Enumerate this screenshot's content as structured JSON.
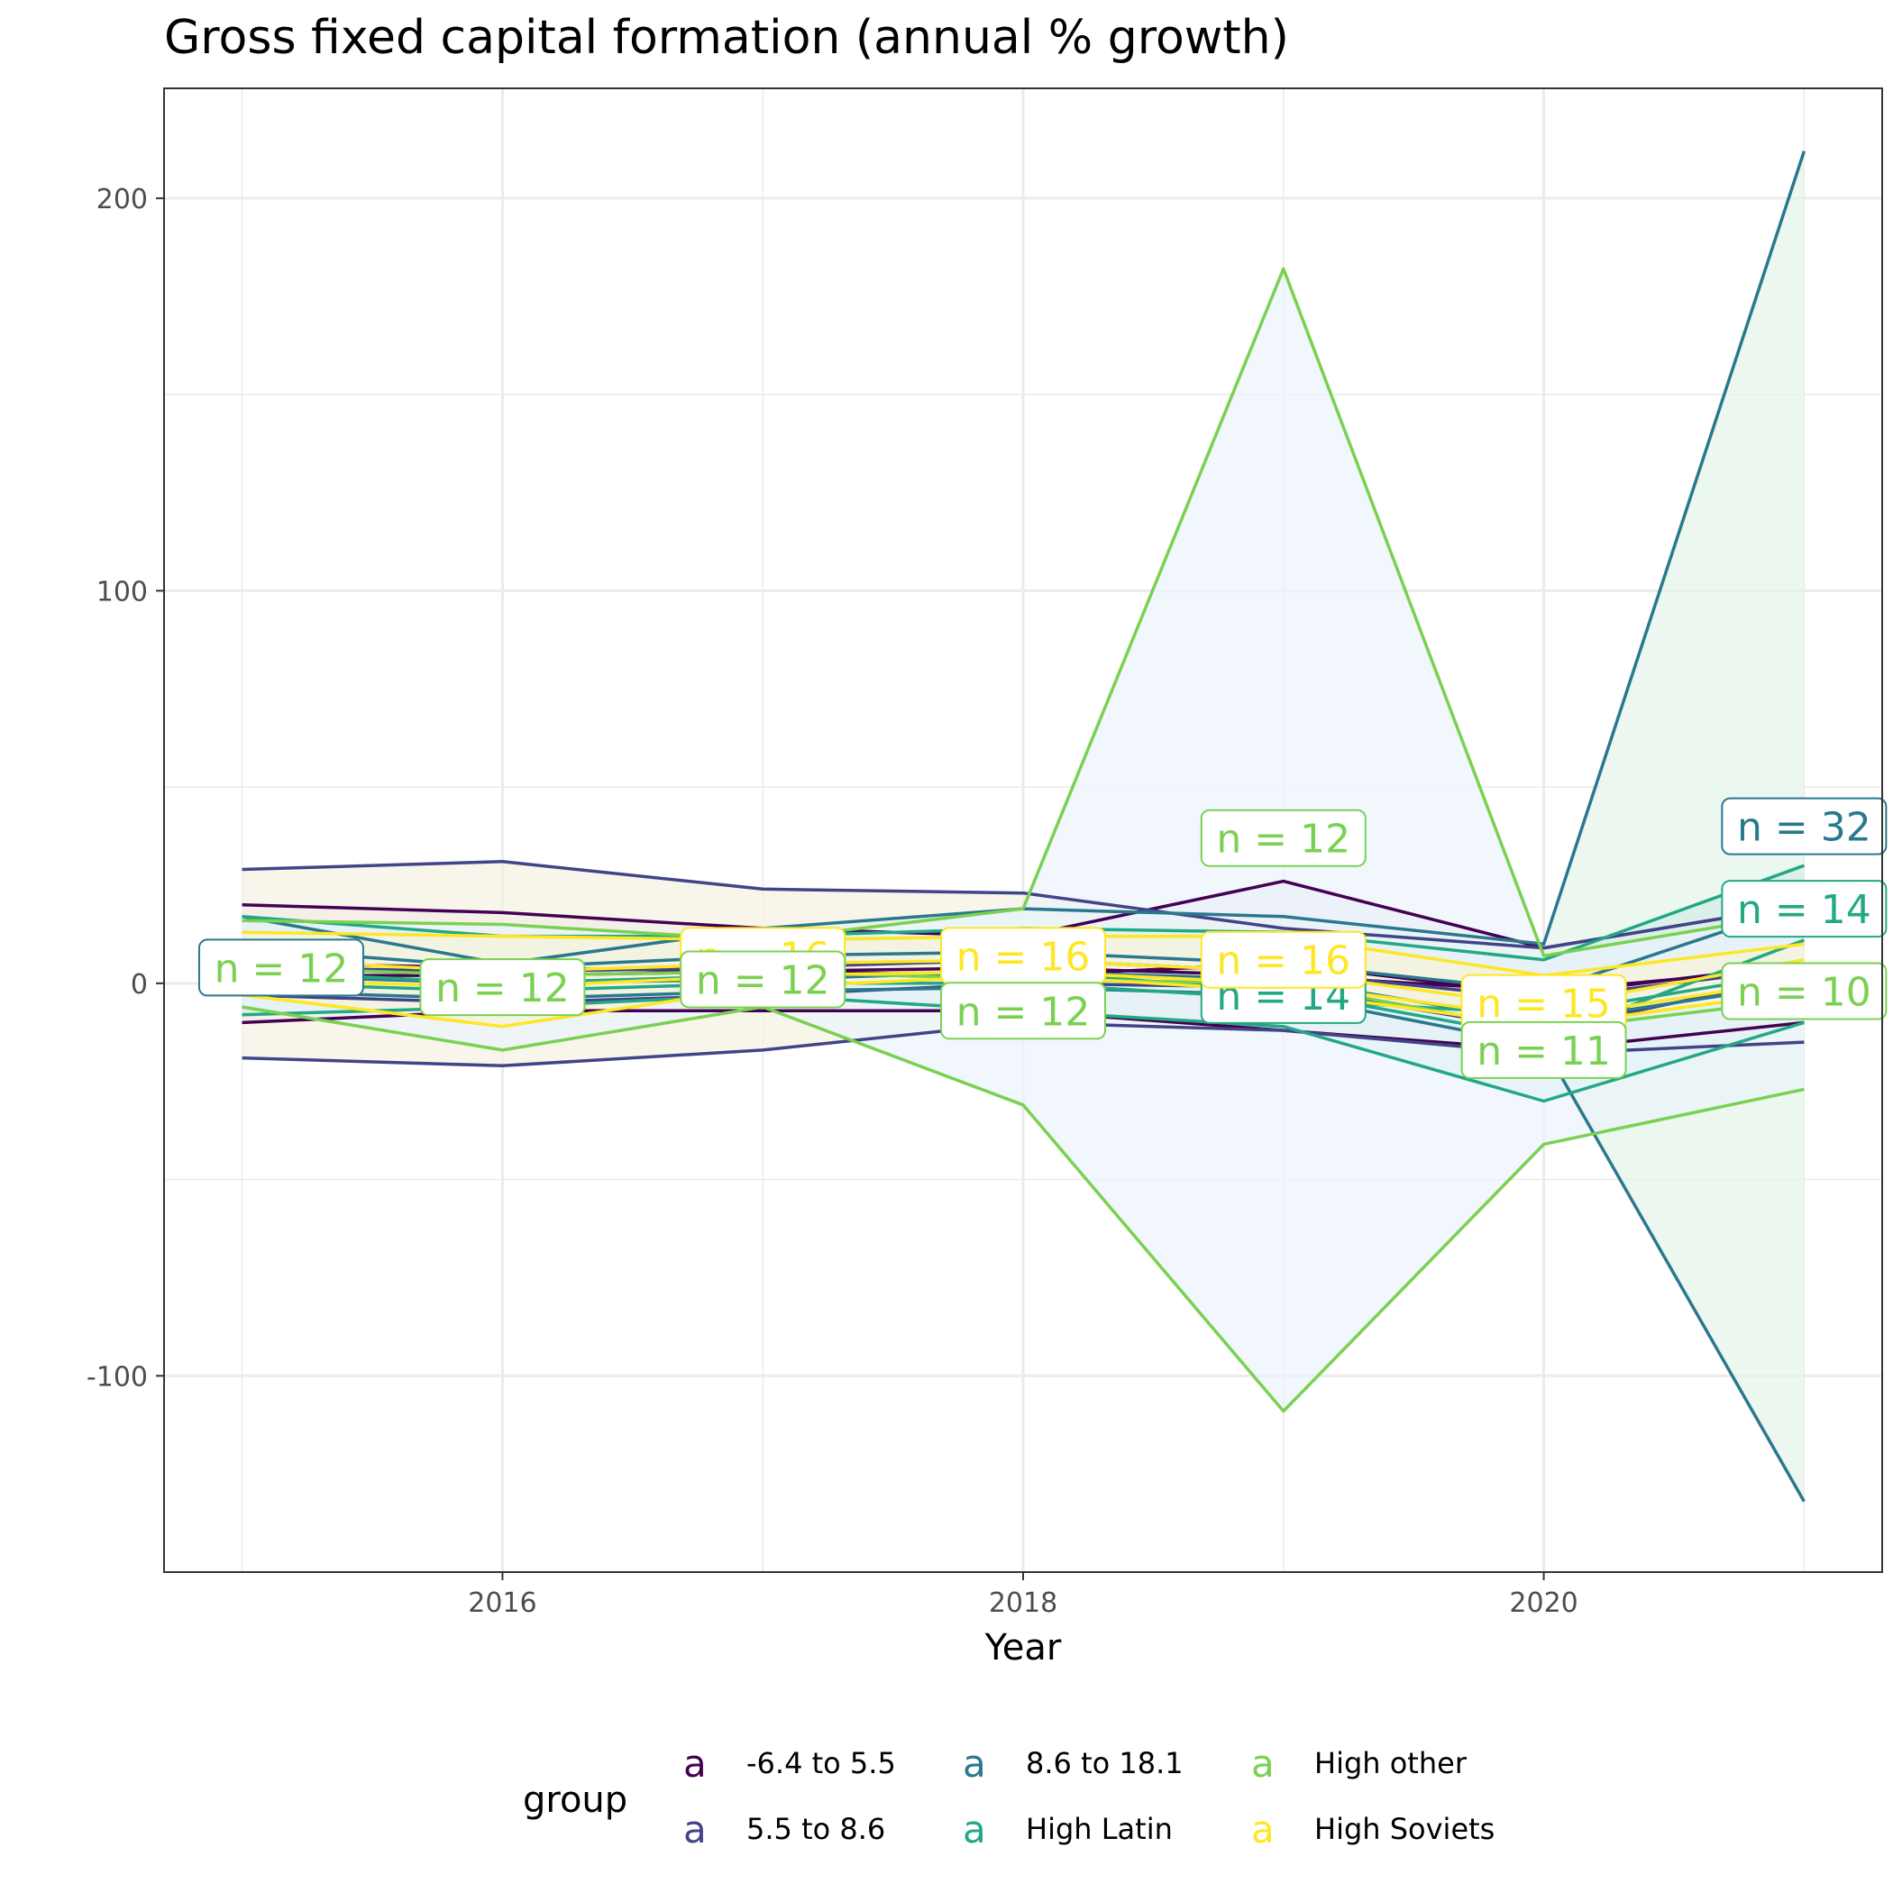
{
  "chart_data": {
    "type": "line",
    "title": "Gross fixed capital formation (annual % growth)",
    "xlabel": "Year",
    "ylabel": "",
    "xlim": [
      2014.7,
      2021.3
    ],
    "ylim": [
      -150,
      228
    ],
    "x_ticks": [
      2016,
      2018,
      2020
    ],
    "y_ticks": [
      -100,
      0,
      100,
      200
    ],
    "grid": true,
    "legend_position": "bottom",
    "legend": {
      "title": "group",
      "key_glyph": "a",
      "items": [
        {
          "label": "-6.4 to 5.5",
          "color": "#440154"
        },
        {
          "label": "5.5 to 8.6",
          "color": "#414487"
        },
        {
          "label": "8.6 to 18.1",
          "color": "#2A788E"
        },
        {
          "label": "High Latin",
          "color": "#22A884"
        },
        {
          "label": "High other",
          "color": "#7AD151"
        },
        {
          "label": "High Soviets",
          "color": "#FDE725"
        }
      ]
    },
    "x": [
      2015,
      2016,
      2017,
      2018,
      2019,
      2020,
      2021
    ],
    "series": [
      {
        "name": "-6.4 to 5.5",
        "color": "#440154",
        "band_fill": "#e9e2ee",
        "max": [
          20,
          18,
          14,
          12,
          26,
          9,
          20
        ],
        "lines": [
          [
            5,
            4,
            3,
            2,
            5,
            -3,
            5
          ],
          [
            2,
            2,
            3,
            4,
            2,
            -2,
            4
          ]
        ],
        "min": [
          -10,
          -7,
          -7,
          -7,
          -12,
          -17,
          -10
        ]
      },
      {
        "name": "5.5 to 8.6",
        "color": "#414487",
        "band_fill": "#f5f2e2",
        "max": [
          29,
          31,
          24,
          23,
          14,
          9,
          20
        ],
        "lines": [
          [
            4,
            3,
            4,
            6,
            3,
            -4,
            4
          ],
          [
            -3,
            -5,
            -3,
            0,
            -1,
            -12,
            2
          ]
        ],
        "min": [
          -19,
          -21,
          -17,
          -10,
          -12,
          -18,
          -15
        ]
      },
      {
        "name": "8.6 to 18.1",
        "color": "#2A788E",
        "band_fill": "#e2f3e8",
        "max": [
          17,
          5,
          14,
          19,
          17,
          10,
          212
        ],
        "lines": [
          [
            9,
            4,
            7,
            8,
            5,
            -2,
            20
          ],
          [
            2,
            0,
            1,
            3,
            1,
            -10,
            0
          ]
        ],
        "min": [
          -2,
          -4,
          -2,
          -1,
          -3,
          -16,
          -132
        ]
      },
      {
        "name": "High Latin",
        "color": "#22A884",
        "band_fill": "#d4ecea",
        "max": [
          17,
          12,
          12,
          14,
          13,
          6,
          30
        ],
        "lines": [
          [
            3,
            0,
            2,
            3,
            -2,
            -14,
            11
          ],
          [
            0,
            -2,
            0,
            0,
            -4,
            -8,
            3
          ]
        ],
        "min": [
          -8,
          -6,
          -3,
          -7,
          -11,
          -30,
          -10
        ]
      },
      {
        "name": "High other",
        "color": "#7AD151",
        "band_fill": "#ebf3fc",
        "max": [
          16,
          15,
          11,
          19,
          182,
          7,
          18
        ],
        "lines": [
          [
            4,
            2,
            3,
            1,
            0,
            -12,
            -4
          ]
        ],
        "min": [
          -6,
          -17,
          -6,
          -31,
          -109,
          -41,
          -27
        ]
      },
      {
        "name": "High Soviets",
        "color": "#FDE725",
        "band_fill": "#f8f4d8",
        "max": [
          13,
          12,
          11,
          12,
          12,
          2,
          10
        ],
        "lines": [
          [
            6,
            3,
            5,
            6,
            3,
            -6,
            6
          ],
          [
            1,
            -1,
            2,
            3,
            0,
            -9,
            1
          ]
        ],
        "min": [
          -3,
          -11,
          -1,
          2,
          -2,
          -11,
          -2
        ]
      }
    ],
    "annotations": [
      {
        "text": "n = 12",
        "x": 2015.15,
        "y": 4,
        "text_color": "#7AD151",
        "border_color": "#2A788E"
      },
      {
        "text": "n = 12",
        "x": 2016.0,
        "y": -1,
        "text_color": "#7AD151",
        "border_color": "#7AD151"
      },
      {
        "text": "n = 16",
        "x": 2017.0,
        "y": 7,
        "text_color": "#FDE725",
        "border_color": "#FDE725"
      },
      {
        "text": "n = 12",
        "x": 2017.0,
        "y": 1,
        "text_color": "#7AD151",
        "border_color": "#7AD151"
      },
      {
        "text": "n = 16",
        "x": 2018.0,
        "y": 7,
        "text_color": "#FDE725",
        "border_color": "#FDE725"
      },
      {
        "text": "n = 12",
        "x": 2018.0,
        "y": -7,
        "text_color": "#7AD151",
        "border_color": "#7AD151"
      },
      {
        "text": "n = 12",
        "x": 2019.0,
        "y": 37,
        "text_color": "#7AD151",
        "border_color": "#7AD151"
      },
      {
        "text": "n = 14",
        "x": 2019.0,
        "y": -3,
        "text_color": "#22A884",
        "border_color": "#22A884"
      },
      {
        "text": "n = 16",
        "x": 2019.0,
        "y": 6,
        "text_color": "#FDE725",
        "border_color": "#FDE725"
      },
      {
        "text": "n = 15",
        "x": 2020.0,
        "y": -5,
        "text_color": "#FDE725",
        "border_color": "#FDE725"
      },
      {
        "text": "n = 11",
        "x": 2020.0,
        "y": -17,
        "text_color": "#7AD151",
        "border_color": "#7AD151"
      },
      {
        "text": "n = 32",
        "x": 2021.0,
        "y": 40,
        "text_color": "#2A788E",
        "border_color": "#2A788E"
      },
      {
        "text": "n = 14",
        "x": 2021.0,
        "y": 19,
        "text_color": "#22A884",
        "border_color": "#22A884"
      },
      {
        "text": "n = 10",
        "x": 2021.0,
        "y": -2,
        "text_color": "#7AD151",
        "border_color": "#7AD151"
      }
    ]
  }
}
